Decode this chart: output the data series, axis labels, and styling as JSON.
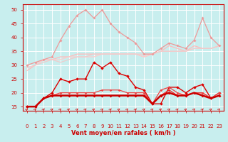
{
  "background_color": "#c8eeee",
  "grid_color": "#aadddd",
  "xlabel": "Vent moyen/en rafales ( km/h )",
  "yticks": [
    15,
    20,
    25,
    30,
    35,
    40,
    45,
    50
  ],
  "xticks": [
    0,
    1,
    2,
    3,
    4,
    5,
    6,
    7,
    8,
    9,
    10,
    11,
    12,
    13,
    14,
    15,
    16,
    17,
    18,
    19,
    20,
    21,
    22,
    23
  ],
  "xlim": [
    -0.5,
    23.5
  ],
  "ylim": [
    13.5,
    52
  ],
  "series": [
    {
      "label": "pink_spike",
      "x": [
        0,
        1,
        2,
        3,
        4,
        5,
        6,
        7,
        8,
        9,
        10,
        11,
        12,
        13,
        14,
        15,
        16,
        17,
        18,
        19,
        20,
        21,
        22,
        23
      ],
      "y": [
        30,
        31,
        32,
        33,
        39,
        44,
        48,
        50,
        47,
        50,
        45,
        42,
        40,
        38,
        34,
        34,
        36,
        38,
        37,
        36,
        39,
        47,
        40,
        37
      ],
      "color": "#ee9999",
      "lw": 0.9,
      "marker": "D",
      "ms": 2.0,
      "zorder": 3
    },
    {
      "label": "pink_trend3",
      "x": [
        0,
        1,
        2,
        3,
        4,
        5,
        6,
        7,
        8,
        9,
        10,
        11,
        12,
        13,
        14,
        15,
        16,
        17,
        18,
        19,
        20,
        21,
        22,
        23
      ],
      "y": [
        28,
        30,
        32,
        32,
        33,
        33,
        34,
        34,
        34,
        34,
        34,
        34,
        34,
        34,
        33,
        34,
        35,
        37,
        36,
        35,
        37,
        36,
        36,
        37
      ],
      "color": "#ffbbbb",
      "lw": 0.9,
      "marker": null,
      "ms": 0,
      "zorder": 2
    },
    {
      "label": "pink_trend2",
      "x": [
        0,
        1,
        2,
        3,
        4,
        5,
        6,
        7,
        8,
        9,
        10,
        11,
        12,
        13,
        14,
        15,
        16,
        17,
        18,
        19,
        20,
        21,
        22,
        23
      ],
      "y": [
        29,
        30,
        32,
        32,
        32,
        33,
        33,
        33,
        33,
        34,
        34,
        34,
        34,
        34,
        33,
        34,
        35,
        35,
        35,
        35,
        36,
        36,
        36,
        37
      ],
      "color": "#ffcccc",
      "lw": 0.9,
      "marker": null,
      "ms": 0,
      "zorder": 2
    },
    {
      "label": "pink_trend1",
      "x": [
        0,
        1,
        2,
        3,
        4,
        5,
        6,
        7,
        8,
        9,
        10,
        11,
        12,
        13,
        14,
        15,
        16,
        17,
        18,
        19,
        20,
        21,
        22,
        23
      ],
      "y": [
        29,
        30,
        31,
        32,
        31,
        32,
        33,
        33,
        34,
        34,
        34,
        34,
        34,
        34,
        34,
        34,
        35,
        35,
        35,
        35,
        36,
        36,
        36,
        37
      ],
      "color": "#eecccc",
      "lw": 0.9,
      "marker": null,
      "ms": 0,
      "zorder": 2
    },
    {
      "label": "red_spike",
      "x": [
        0,
        1,
        2,
        3,
        4,
        5,
        6,
        7,
        8,
        9,
        10,
        11,
        12,
        13,
        14,
        15,
        16,
        17,
        18,
        19,
        20,
        21,
        22,
        23
      ],
      "y": [
        15,
        15,
        18,
        20,
        25,
        24,
        25,
        25,
        31,
        29,
        31,
        27,
        26,
        22,
        21,
        16,
        16,
        22,
        22,
        20,
        22,
        23,
        18,
        20
      ],
      "color": "#dd0000",
      "lw": 1.0,
      "marker": "D",
      "ms": 2.2,
      "zorder": 6
    },
    {
      "label": "red_flat1",
      "x": [
        0,
        1,
        2,
        3,
        4,
        5,
        6,
        7,
        8,
        9,
        10,
        11,
        12,
        13,
        14,
        15,
        16,
        17,
        18,
        19,
        20,
        21,
        22,
        23
      ],
      "y": [
        15,
        15,
        18,
        19,
        19,
        19,
        19,
        19,
        19,
        19,
        19,
        19,
        19,
        19,
        19,
        16,
        19,
        20,
        19,
        19,
        20,
        19,
        18,
        19
      ],
      "color": "#cc0000",
      "lw": 1.8,
      "marker": "D",
      "ms": 2.0,
      "zorder": 8
    },
    {
      "label": "red_flat2",
      "x": [
        0,
        1,
        2,
        3,
        4,
        5,
        6,
        7,
        8,
        9,
        10,
        11,
        12,
        13,
        14,
        15,
        16,
        17,
        18,
        19,
        20,
        21,
        22,
        23
      ],
      "y": [
        15,
        15,
        18,
        19,
        19,
        19,
        19,
        19,
        19,
        19,
        19,
        19,
        19,
        19,
        19,
        16,
        19,
        21,
        19,
        19,
        20,
        20,
        18,
        19
      ],
      "color": "#ee2222",
      "lw": 0.9,
      "marker": "D",
      "ms": 1.8,
      "zorder": 7
    },
    {
      "label": "red_flat3",
      "x": [
        0,
        1,
        2,
        3,
        4,
        5,
        6,
        7,
        8,
        9,
        10,
        11,
        12,
        13,
        14,
        15,
        16,
        17,
        18,
        19,
        20,
        21,
        22,
        23
      ],
      "y": [
        15,
        15,
        18,
        19,
        20,
        20,
        20,
        20,
        20,
        21,
        21,
        21,
        20,
        20,
        20,
        16,
        21,
        22,
        20,
        19,
        20,
        20,
        18,
        20
      ],
      "color": "#ee4444",
      "lw": 0.9,
      "marker": "D",
      "ms": 1.8,
      "zorder": 7
    }
  ],
  "arrow_color": "#cc0000",
  "tick_color": "#cc0000",
  "label_color": "#cc0000",
  "spine_color": "#cc0000",
  "tick_fontsize": 5,
  "xlabel_fontsize": 6
}
